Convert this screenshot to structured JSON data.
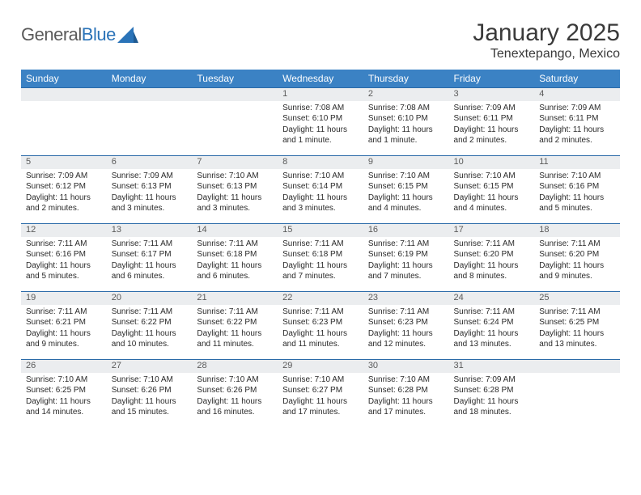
{
  "logo": {
    "text1": "General",
    "text2": "Blue"
  },
  "title": "January 2025",
  "location": "Tenextepango, Mexico",
  "day_headers": [
    "Sunday",
    "Monday",
    "Tuesday",
    "Wednesday",
    "Thursday",
    "Friday",
    "Saturday"
  ],
  "colors": {
    "header_bg": "#3b82c4",
    "header_text": "#ffffff",
    "day_bg": "#ebedef",
    "rule": "#2a6aa8",
    "text": "#2a2a2a",
    "logo_gray": "#5a5a5a",
    "logo_blue": "#2a73b8"
  },
  "weeks": [
    [
      null,
      null,
      null,
      {
        "n": "1",
        "sunrise": "Sunrise: 7:08 AM",
        "sunset": "Sunset: 6:10 PM",
        "daylight": "Daylight: 11 hours and 1 minute."
      },
      {
        "n": "2",
        "sunrise": "Sunrise: 7:08 AM",
        "sunset": "Sunset: 6:10 PM",
        "daylight": "Daylight: 11 hours and 1 minute."
      },
      {
        "n": "3",
        "sunrise": "Sunrise: 7:09 AM",
        "sunset": "Sunset: 6:11 PM",
        "daylight": "Daylight: 11 hours and 2 minutes."
      },
      {
        "n": "4",
        "sunrise": "Sunrise: 7:09 AM",
        "sunset": "Sunset: 6:11 PM",
        "daylight": "Daylight: 11 hours and 2 minutes."
      }
    ],
    [
      {
        "n": "5",
        "sunrise": "Sunrise: 7:09 AM",
        "sunset": "Sunset: 6:12 PM",
        "daylight": "Daylight: 11 hours and 2 minutes."
      },
      {
        "n": "6",
        "sunrise": "Sunrise: 7:09 AM",
        "sunset": "Sunset: 6:13 PM",
        "daylight": "Daylight: 11 hours and 3 minutes."
      },
      {
        "n": "7",
        "sunrise": "Sunrise: 7:10 AM",
        "sunset": "Sunset: 6:13 PM",
        "daylight": "Daylight: 11 hours and 3 minutes."
      },
      {
        "n": "8",
        "sunrise": "Sunrise: 7:10 AM",
        "sunset": "Sunset: 6:14 PM",
        "daylight": "Daylight: 11 hours and 3 minutes."
      },
      {
        "n": "9",
        "sunrise": "Sunrise: 7:10 AM",
        "sunset": "Sunset: 6:15 PM",
        "daylight": "Daylight: 11 hours and 4 minutes."
      },
      {
        "n": "10",
        "sunrise": "Sunrise: 7:10 AM",
        "sunset": "Sunset: 6:15 PM",
        "daylight": "Daylight: 11 hours and 4 minutes."
      },
      {
        "n": "11",
        "sunrise": "Sunrise: 7:10 AM",
        "sunset": "Sunset: 6:16 PM",
        "daylight": "Daylight: 11 hours and 5 minutes."
      }
    ],
    [
      {
        "n": "12",
        "sunrise": "Sunrise: 7:11 AM",
        "sunset": "Sunset: 6:16 PM",
        "daylight": "Daylight: 11 hours and 5 minutes."
      },
      {
        "n": "13",
        "sunrise": "Sunrise: 7:11 AM",
        "sunset": "Sunset: 6:17 PM",
        "daylight": "Daylight: 11 hours and 6 minutes."
      },
      {
        "n": "14",
        "sunrise": "Sunrise: 7:11 AM",
        "sunset": "Sunset: 6:18 PM",
        "daylight": "Daylight: 11 hours and 6 minutes."
      },
      {
        "n": "15",
        "sunrise": "Sunrise: 7:11 AM",
        "sunset": "Sunset: 6:18 PM",
        "daylight": "Daylight: 11 hours and 7 minutes."
      },
      {
        "n": "16",
        "sunrise": "Sunrise: 7:11 AM",
        "sunset": "Sunset: 6:19 PM",
        "daylight": "Daylight: 11 hours and 7 minutes."
      },
      {
        "n": "17",
        "sunrise": "Sunrise: 7:11 AM",
        "sunset": "Sunset: 6:20 PM",
        "daylight": "Daylight: 11 hours and 8 minutes."
      },
      {
        "n": "18",
        "sunrise": "Sunrise: 7:11 AM",
        "sunset": "Sunset: 6:20 PM",
        "daylight": "Daylight: 11 hours and 9 minutes."
      }
    ],
    [
      {
        "n": "19",
        "sunrise": "Sunrise: 7:11 AM",
        "sunset": "Sunset: 6:21 PM",
        "daylight": "Daylight: 11 hours and 9 minutes."
      },
      {
        "n": "20",
        "sunrise": "Sunrise: 7:11 AM",
        "sunset": "Sunset: 6:22 PM",
        "daylight": "Daylight: 11 hours and 10 minutes."
      },
      {
        "n": "21",
        "sunrise": "Sunrise: 7:11 AM",
        "sunset": "Sunset: 6:22 PM",
        "daylight": "Daylight: 11 hours and 11 minutes."
      },
      {
        "n": "22",
        "sunrise": "Sunrise: 7:11 AM",
        "sunset": "Sunset: 6:23 PM",
        "daylight": "Daylight: 11 hours and 11 minutes."
      },
      {
        "n": "23",
        "sunrise": "Sunrise: 7:11 AM",
        "sunset": "Sunset: 6:23 PM",
        "daylight": "Daylight: 11 hours and 12 minutes."
      },
      {
        "n": "24",
        "sunrise": "Sunrise: 7:11 AM",
        "sunset": "Sunset: 6:24 PM",
        "daylight": "Daylight: 11 hours and 13 minutes."
      },
      {
        "n": "25",
        "sunrise": "Sunrise: 7:11 AM",
        "sunset": "Sunset: 6:25 PM",
        "daylight": "Daylight: 11 hours and 13 minutes."
      }
    ],
    [
      {
        "n": "26",
        "sunrise": "Sunrise: 7:10 AM",
        "sunset": "Sunset: 6:25 PM",
        "daylight": "Daylight: 11 hours and 14 minutes."
      },
      {
        "n": "27",
        "sunrise": "Sunrise: 7:10 AM",
        "sunset": "Sunset: 6:26 PM",
        "daylight": "Daylight: 11 hours and 15 minutes."
      },
      {
        "n": "28",
        "sunrise": "Sunrise: 7:10 AM",
        "sunset": "Sunset: 6:26 PM",
        "daylight": "Daylight: 11 hours and 16 minutes."
      },
      {
        "n": "29",
        "sunrise": "Sunrise: 7:10 AM",
        "sunset": "Sunset: 6:27 PM",
        "daylight": "Daylight: 11 hours and 17 minutes."
      },
      {
        "n": "30",
        "sunrise": "Sunrise: 7:10 AM",
        "sunset": "Sunset: 6:28 PM",
        "daylight": "Daylight: 11 hours and 17 minutes."
      },
      {
        "n": "31",
        "sunrise": "Sunrise: 7:09 AM",
        "sunset": "Sunset: 6:28 PM",
        "daylight": "Daylight: 11 hours and 18 minutes."
      },
      null
    ]
  ]
}
